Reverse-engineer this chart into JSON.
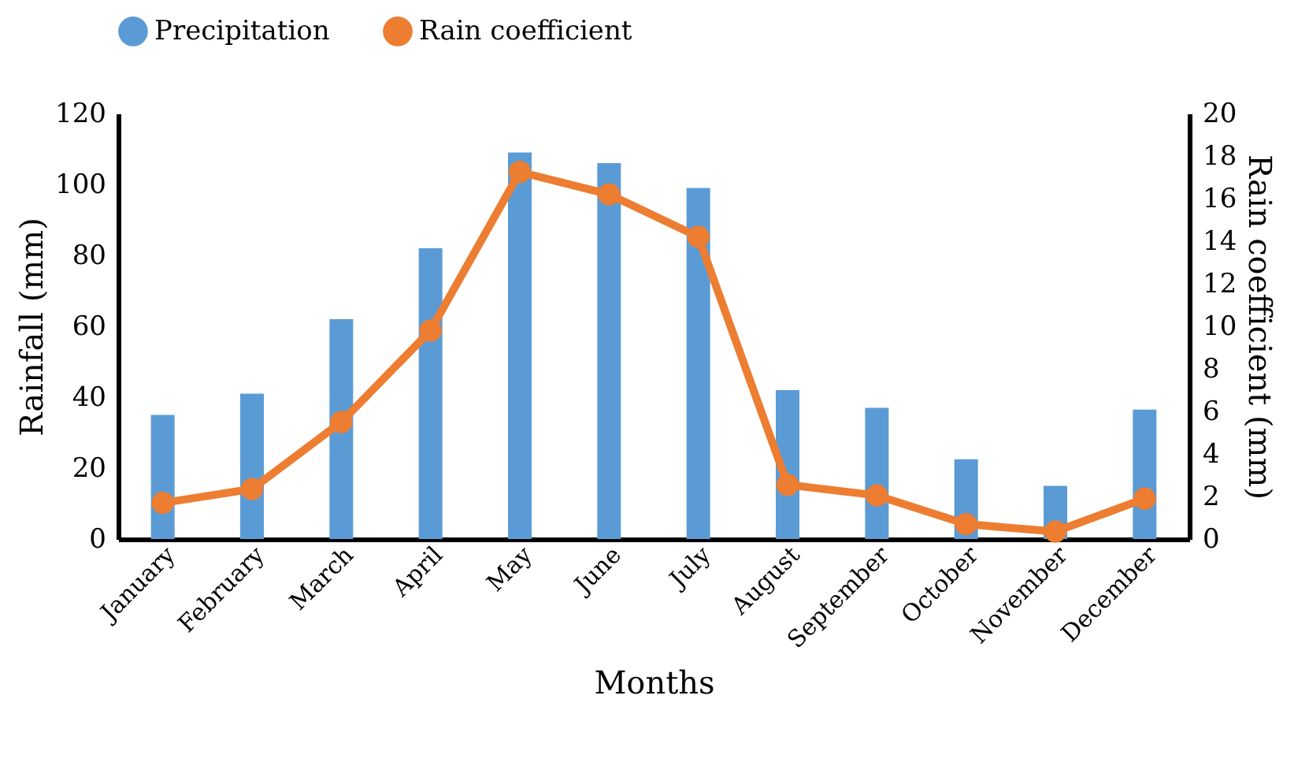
{
  "chart_data": {
    "type": "bar",
    "xlabel": "Months",
    "ylabel": "Rainfall (mm)",
    "y2label": "Rain coefficient (mm)",
    "categories": [
      "January",
      "February",
      "March",
      "April",
      "May",
      "June",
      "July",
      "August",
      "September",
      "October",
      "November",
      "December"
    ],
    "series": [
      {
        "name": "Precipitation",
        "color": "#5b9bd5",
        "values": [
          35,
          41,
          62,
          82,
          109,
          106,
          99,
          42,
          37,
          22.5,
          15,
          36.5
        ]
      },
      {
        "name": "Rain coefficient",
        "type": "line",
        "axis": "y2",
        "color": "#ed7d31",
        "marker": "circle",
        "values": [
          1.7,
          2.35,
          5.5,
          9.8,
          17.25,
          16.2,
          14.2,
          2.55,
          2.05,
          0.7,
          0.35,
          1.9
        ]
      }
    ],
    "ylim": [
      0,
      120
    ],
    "yticks": [
      0,
      20,
      40,
      60,
      80,
      100,
      120
    ],
    "y2lim": [
      0,
      20
    ],
    "y2ticks": [
      0,
      2,
      4,
      6,
      8,
      10,
      12,
      14,
      16,
      18,
      20
    ],
    "grid": false,
    "legend": "top"
  }
}
